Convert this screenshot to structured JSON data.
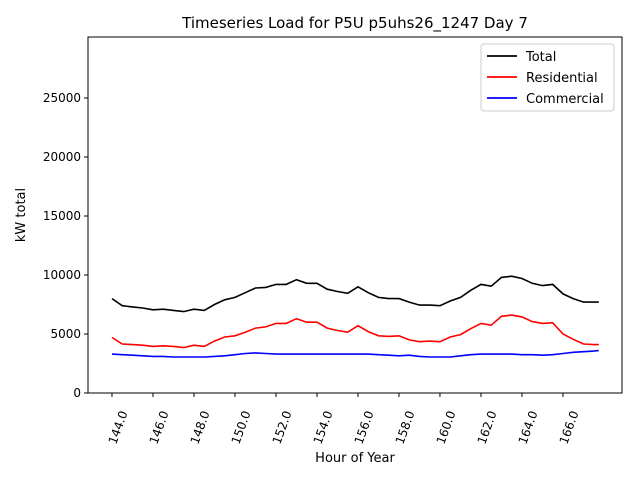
{
  "chart_data": {
    "type": "line",
    "title": "Timeseries Load for P5U p5uhs26_1247  Day 7",
    "xlabel": "Hour of Year",
    "ylabel": "kW total",
    "xlim": [
      142.83,
      168.88
    ],
    "ylim": [
      0,
      30170
    ],
    "xticks": [
      144,
      146,
      148,
      150,
      152,
      154,
      156,
      158,
      160,
      162,
      164,
      166
    ],
    "xtick_labels": [
      "144.0",
      "146.0",
      "148.0",
      "150.0",
      "152.0",
      "154.0",
      "156.0",
      "158.0",
      "160.0",
      "162.0",
      "164.0",
      "166.0"
    ],
    "yticks": [
      0,
      5000,
      10000,
      15000,
      20000,
      25000
    ],
    "ytick_labels": [
      "0",
      "5000",
      "10000",
      "15000",
      "20000",
      "25000"
    ],
    "grid": false,
    "legend_position": "top-right",
    "x": [
      144,
      144.5,
      145,
      145.5,
      146,
      146.5,
      147,
      147.5,
      148,
      148.5,
      149,
      149.5,
      150,
      150.5,
      151,
      151.5,
      152,
      152.5,
      153,
      153.5,
      154,
      154.5,
      155,
      155.5,
      156,
      156.5,
      157,
      157.5,
      158,
      158.5,
      159,
      159.5,
      160,
      160.5,
      161,
      161.5,
      162,
      162.5,
      163,
      163.5,
      164,
      164.5,
      165,
      165.5,
      166,
      166.5,
      167,
      167.5,
      167.75
    ],
    "series": [
      {
        "name": "Total",
        "color": "#000000",
        "values": [
          8000,
          7400,
          7300,
          7200,
          7050,
          7100,
          7000,
          6900,
          7100,
          7000,
          7500,
          7900,
          8100,
          8500,
          8900,
          8950,
          9200,
          9200,
          9600,
          9300,
          9300,
          8800,
          8600,
          8450,
          9000,
          8500,
          8100,
          8000,
          8000,
          7700,
          7450,
          7450,
          7400,
          7800,
          8100,
          8700,
          9200,
          9050,
          9800,
          9900,
          9700,
          9300,
          9100,
          9200,
          8400,
          8000,
          7700,
          7700,
          7700
        ]
      },
      {
        "name": "Residential",
        "color": "#ff0000",
        "values": [
          4700,
          4150,
          4100,
          4050,
          3950,
          4000,
          3950,
          3850,
          4050,
          3950,
          4400,
          4750,
          4850,
          5150,
          5500,
          5600,
          5900,
          5900,
          6300,
          6000,
          6000,
          5500,
          5300,
          5150,
          5700,
          5200,
          4850,
          4800,
          4850,
          4500,
          4350,
          4400,
          4350,
          4750,
          4950,
          5450,
          5900,
          5750,
          6500,
          6600,
          6450,
          6050,
          5900,
          5950,
          5000,
          4550,
          4150,
          4100,
          4100
        ]
      },
      {
        "name": "Commercial",
        "color": "#0000ff",
        "values": [
          3300,
          3250,
          3200,
          3150,
          3100,
          3100,
          3050,
          3050,
          3050,
          3050,
          3100,
          3150,
          3250,
          3350,
          3400,
          3350,
          3300,
          3300,
          3300,
          3300,
          3300,
          3300,
          3300,
          3300,
          3300,
          3300,
          3250,
          3200,
          3150,
          3200,
          3100,
          3050,
          3050,
          3050,
          3150,
          3250,
          3300,
          3300,
          3300,
          3300,
          3250,
          3250,
          3200,
          3250,
          3350,
          3450,
          3500,
          3550,
          3600
        ]
      }
    ]
  }
}
